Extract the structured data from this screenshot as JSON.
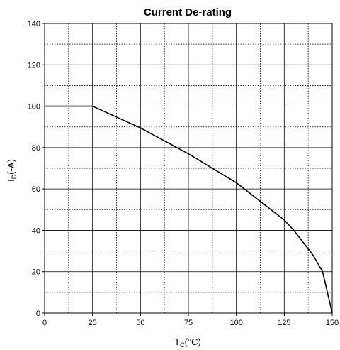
{
  "chart_data": {
    "type": "line",
    "title": "Current De-rating",
    "xlabel": {
      "main": "T",
      "sub": "C",
      "suffix": "(°C)"
    },
    "ylabel": {
      "main": "I",
      "sub": "D",
      "suffix": "(-A)"
    },
    "xlim": [
      0,
      150
    ],
    "ylim": [
      0,
      140
    ],
    "xticks": [
      0,
      25,
      50,
      75,
      100,
      125,
      150
    ],
    "yticks": [
      0,
      20,
      40,
      60,
      80,
      100,
      120,
      140
    ],
    "x_minor_step": 12.5,
    "y_minor_step": 10,
    "grid": true,
    "series": [
      {
        "x": [
          0,
          25,
          50,
          75,
          100,
          112.5,
          125,
          130,
          135,
          140,
          145,
          150
        ],
        "y": [
          100,
          100,
          89.5,
          77,
          63,
          54,
          45,
          40,
          34,
          28,
          20,
          0
        ]
      }
    ]
  }
}
